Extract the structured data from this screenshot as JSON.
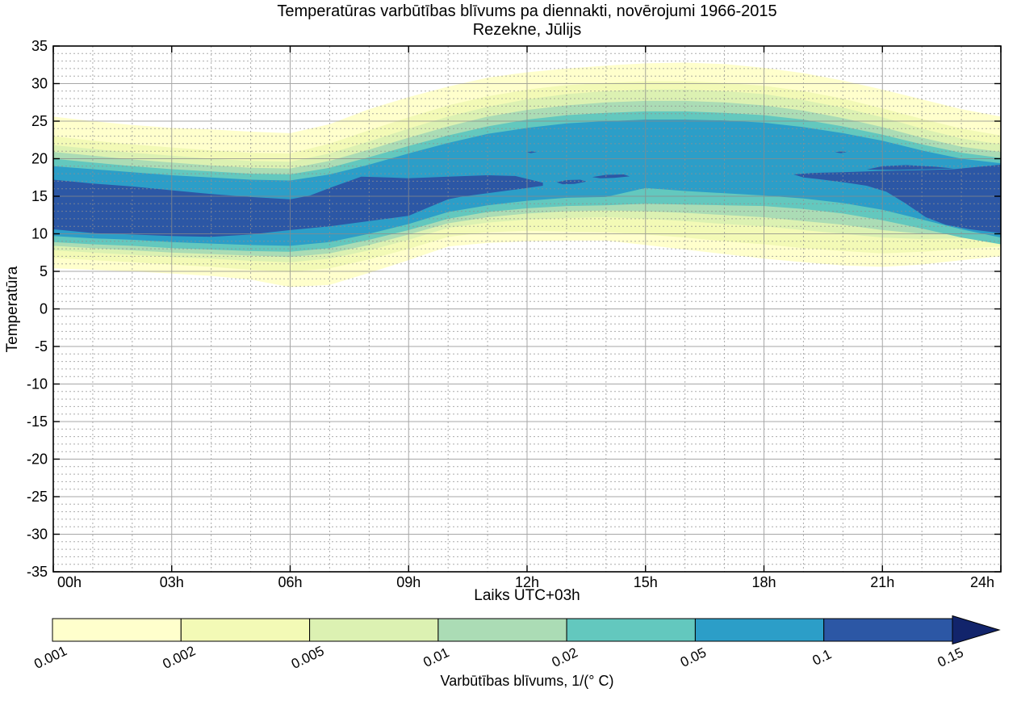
{
  "figure": {
    "title": "Temperatūras varbūtības blīvums pa diennakti, novērojumi 1966-2015",
    "subtitle": "Rezekne, Jūlijs",
    "background": "#ffffff"
  },
  "axes": {
    "xlabel": "Laiks UTC+03h",
    "ylabel": "Temperatūra",
    "xlim": [
      0,
      24
    ],
    "ylim": [
      -35,
      35
    ],
    "x_ticks": [
      {
        "value": 0,
        "label": "00h"
      },
      {
        "value": 3,
        "label": "03h"
      },
      {
        "value": 6,
        "label": "06h"
      },
      {
        "value": 9,
        "label": "09h"
      },
      {
        "value": 12,
        "label": "12h"
      },
      {
        "value": 15,
        "label": "15h"
      },
      {
        "value": 18,
        "label": "18h"
      },
      {
        "value": 21,
        "label": "21h"
      },
      {
        "value": 24,
        "label": "24h"
      }
    ],
    "y_ticks": [
      35,
      30,
      25,
      20,
      15,
      10,
      5,
      0,
      -5,
      -10,
      -15,
      -20,
      -25,
      -30,
      -35
    ],
    "grid": {
      "major_color": "#8a8a8a",
      "minor_color": "#909090",
      "minor_step_x_hours": 1,
      "minor_step_y_deg": 1
    }
  },
  "colorbar": {
    "label": "Varbūtības blīvums, 1/(° C)",
    "tick_labels": [
      "0.001",
      "0.002",
      "0.005",
      "0.01",
      "0.02",
      "0.05",
      "0.1",
      "0.15"
    ],
    "segment_colors": [
      "#ffffcc",
      "#f3fab6",
      "#dcf1b2",
      "#abdcb5",
      "#63c8be",
      "#2c9ec8",
      "#2c57a5"
    ],
    "arrow_color": "#12246b"
  },
  "chart_data": {
    "type": "contour",
    "title": "Temperatūras varbūtības blīvums pa diennakti, novērojumi 1966-2015 — Rezekne, Jūlijs",
    "xlabel": "Laiks UTC+03h",
    "ylabel": "Temperatūra",
    "xlim": [
      0,
      24
    ],
    "ylim": [
      -35,
      35
    ],
    "levels": [
      0.001,
      0.002,
      0.005,
      0.01,
      0.02,
      0.05,
      0.1,
      0.15
    ],
    "level_colors": [
      "#ffffcc",
      "#f3fab6",
      "#dcf1b2",
      "#abdcb5",
      "#63c8be",
      "#2c9ec8",
      "#2c57a5",
      "#12246b"
    ],
    "hours": [
      0,
      1,
      2,
      3,
      4,
      5,
      6,
      7,
      8,
      9,
      10,
      11,
      12,
      13,
      14,
      15,
      16,
      17,
      18,
      19,
      20,
      21,
      22,
      23,
      24
    ],
    "bands": [
      {
        "level": 0.001,
        "upper": [
          25.6,
          25.0,
          24.5,
          24.1,
          23.9,
          23.6,
          23.4,
          24.6,
          26.6,
          28.2,
          29.6,
          30.8,
          31.5,
          32.0,
          32.4,
          32.7,
          32.8,
          32.6,
          32.1,
          31.4,
          30.4,
          29.2,
          27.9,
          26.6,
          25.6
        ],
        "lower": [
          5.4,
          5.2,
          5.0,
          4.7,
          4.4,
          3.9,
          2.9,
          3.2,
          4.8,
          6.5,
          8.3,
          8.8,
          9.0,
          9.1,
          9.1,
          8.5,
          7.9,
          7.3,
          6.7,
          6.2,
          5.8,
          5.6,
          5.9,
          6.5,
          7.0
        ]
      },
      {
        "level": 0.002,
        "upper": [
          23.0,
          22.4,
          21.9,
          21.5,
          21.1,
          20.8,
          20.7,
          22.0,
          23.8,
          25.5,
          27.1,
          28.3,
          29.2,
          29.8,
          30.1,
          30.3,
          30.3,
          30.1,
          29.7,
          29.0,
          28.0,
          26.7,
          25.3,
          24.0,
          23.1
        ],
        "lower": [
          6.8,
          6.5,
          6.2,
          5.9,
          5.6,
          5.2,
          4.9,
          5.4,
          6.6,
          8.0,
          9.6,
          10.2,
          10.4,
          10.3,
          10.2,
          9.9,
          9.5,
          9.0,
          8.6,
          8.1,
          7.7,
          7.4,
          7.6,
          8.0,
          8.3
        ]
      },
      {
        "level": 0.005,
        "upper": [
          21.8,
          21.3,
          20.8,
          20.4,
          20.0,
          19.7,
          19.6,
          20.7,
          22.3,
          24.0,
          25.6,
          26.9,
          27.9,
          28.6,
          29.0,
          29.2,
          29.2,
          29.0,
          28.6,
          27.8,
          26.8,
          25.5,
          24.0,
          22.7,
          21.9
        ],
        "lower": [
          7.8,
          7.5,
          7.2,
          6.9,
          6.7,
          6.4,
          6.2,
          6.7,
          7.8,
          9.2,
          10.8,
          11.5,
          11.9,
          12.1,
          12.2,
          12.0,
          11.7,
          11.3,
          11.0,
          10.5,
          10.0,
          9.5,
          9.3,
          9.4,
          9.5
        ]
      },
      {
        "level": 0.01,
        "upper": [
          20.9,
          20.4,
          19.9,
          19.5,
          19.1,
          18.8,
          18.7,
          19.7,
          21.2,
          22.8,
          24.3,
          25.6,
          26.5,
          27.1,
          27.5,
          27.7,
          27.7,
          27.5,
          27.1,
          26.4,
          25.4,
          24.2,
          22.8,
          21.6,
          20.9
        ],
        "lower": [
          8.4,
          8.1,
          7.8,
          7.5,
          7.3,
          7.1,
          6.9,
          7.4,
          8.5,
          9.9,
          11.4,
          12.2,
          12.7,
          13.0,
          13.1,
          13.0,
          12.8,
          12.5,
          12.2,
          11.7,
          11.2,
          10.5,
          10.0,
          9.9,
          9.9
        ]
      },
      {
        "level": 0.02,
        "upper": [
          20.0,
          19.5,
          19.0,
          18.6,
          18.3,
          18.0,
          17.9,
          18.8,
          20.2,
          21.7,
          23.1,
          24.3,
          25.2,
          25.8,
          26.1,
          26.3,
          26.3,
          26.1,
          25.8,
          25.2,
          24.3,
          23.2,
          21.9,
          20.8,
          20.1
        ],
        "lower": [
          8.9,
          8.6,
          8.4,
          8.1,
          7.9,
          7.7,
          7.6,
          8.1,
          9.2,
          10.5,
          12.0,
          12.9,
          13.4,
          13.7,
          13.8,
          14.0,
          13.9,
          13.8,
          13.7,
          13.3,
          12.7,
          11.8,
          10.7,
          9.5,
          8.6
        ]
      },
      {
        "level": 0.05,
        "upper": [
          19.0,
          18.6,
          18.2,
          17.8,
          17.5,
          17.2,
          17.1,
          17.9,
          19.2,
          20.7,
          22.1,
          23.3,
          24.1,
          24.7,
          25.0,
          25.2,
          25.2,
          25.1,
          24.8,
          24.2,
          23.4,
          22.4,
          21.1,
          20.0,
          19.4
        ],
        "lower": [
          9.7,
          9.4,
          9.2,
          8.9,
          8.7,
          8.5,
          8.4,
          8.9,
          10.0,
          11.3,
          12.9,
          13.8,
          14.4,
          14.8,
          14.9,
          16.1,
          15.7,
          15.4,
          15.1,
          14.7,
          14.1,
          13.2,
          11.9,
          10.6,
          9.5
        ]
      }
    ],
    "regions_0p1": [
      {
        "name": "navy-left-band",
        "points": [
          [
            0,
            17.2
          ],
          [
            1,
            16.7
          ],
          [
            2,
            16.3
          ],
          [
            3,
            15.8
          ],
          [
            4,
            15.3
          ],
          [
            5,
            14.9
          ],
          [
            6,
            14.6
          ],
          [
            6.5,
            15.1
          ],
          [
            7,
            16.1
          ],
          [
            7.8,
            17.6
          ],
          [
            8.5,
            17.5
          ],
          [
            9,
            17.4
          ],
          [
            9.5,
            17.5
          ],
          [
            10,
            17.6
          ],
          [
            11,
            17.8
          ],
          [
            11.7,
            17.7
          ],
          [
            12.4,
            16.8
          ],
          [
            12.4,
            16.4
          ],
          [
            12,
            16.1
          ],
          [
            11,
            15.4
          ],
          [
            10.3,
            14.9
          ],
          [
            10,
            14.6
          ],
          [
            9.5,
            13.5
          ],
          [
            9,
            12.4
          ],
          [
            8,
            11.7
          ],
          [
            7,
            11.0
          ],
          [
            6,
            10.5
          ],
          [
            5,
            9.9
          ],
          [
            4,
            9.6
          ],
          [
            3,
            9.7
          ],
          [
            2,
            9.9
          ],
          [
            1,
            10.1
          ],
          [
            0,
            10.6
          ]
        ]
      },
      {
        "name": "navy-lens-13h",
        "points": [
          [
            12.75,
            16.85
          ],
          [
            13.0,
            17.15
          ],
          [
            13.35,
            17.2
          ],
          [
            13.5,
            16.95
          ],
          [
            13.2,
            16.65
          ],
          [
            12.9,
            16.6
          ]
        ]
      },
      {
        "name": "navy-lens-14h",
        "points": [
          [
            13.65,
            17.55
          ],
          [
            14.0,
            17.85
          ],
          [
            14.45,
            17.9
          ],
          [
            14.6,
            17.65
          ],
          [
            14.2,
            17.45
          ],
          [
            13.85,
            17.4
          ]
        ]
      },
      {
        "name": "navy-speck-12h",
        "points": [
          [
            12.0,
            20.85
          ],
          [
            12.1,
            20.97
          ],
          [
            12.25,
            20.9
          ],
          [
            12.1,
            20.74
          ]
        ]
      },
      {
        "name": "navy-speck-20h",
        "points": [
          [
            19.8,
            20.85
          ],
          [
            19.95,
            20.97
          ],
          [
            20.1,
            20.9
          ],
          [
            19.95,
            20.74
          ]
        ]
      },
      {
        "name": "navy-right-band",
        "points": [
          [
            18.75,
            17.9
          ],
          [
            19.2,
            18.1
          ],
          [
            20,
            18.2
          ],
          [
            20.9,
            18.35
          ],
          [
            21.8,
            18.45
          ],
          [
            22.8,
            18.6
          ],
          [
            24,
            19.2
          ],
          [
            24,
            10.1
          ],
          [
            23.2,
            10.6
          ],
          [
            22.6,
            11.2
          ],
          [
            22.1,
            12.2
          ],
          [
            21.6,
            14.0
          ],
          [
            21.1,
            15.6
          ],
          [
            20.6,
            16.4
          ],
          [
            20.1,
            16.8
          ],
          [
            19.5,
            17.2
          ],
          [
            19,
            17.5
          ]
        ]
      },
      {
        "name": "navy-upper-tongue",
        "points": [
          [
            20.6,
            18.55
          ],
          [
            21.0,
            19.0
          ],
          [
            21.6,
            19.15
          ],
          [
            22.3,
            18.95
          ],
          [
            22.8,
            18.7
          ],
          [
            22.2,
            18.6
          ],
          [
            21.4,
            18.5
          ]
        ]
      }
    ],
    "islands_0p001": [
      {
        "name": "yellow-island-6h",
        "points": [
          [
            5.25,
            22.7
          ],
          [
            5.5,
            23.0
          ],
          [
            5.9,
            22.9
          ],
          [
            6.0,
            22.5
          ],
          [
            5.6,
            22.3
          ]
        ]
      }
    ],
    "legend_position": "bottom",
    "grid": true
  }
}
